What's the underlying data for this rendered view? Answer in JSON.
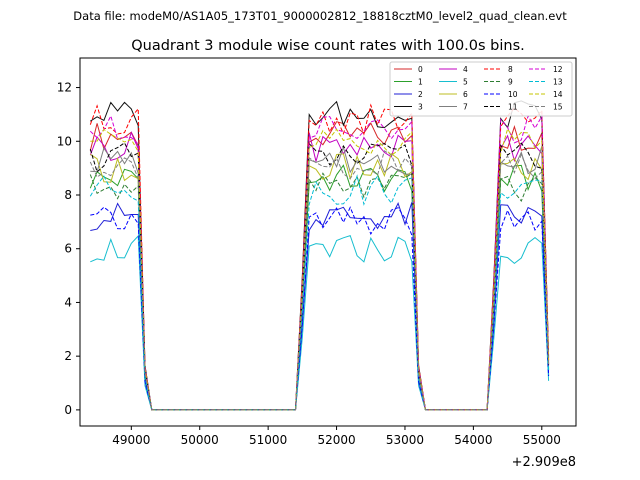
{
  "chart_data": {
    "type": "line",
    "suptitle": "Data file: modeM0/AS1A05_173T01_9000002812_18818cztM0_level2_quad_clean.evt",
    "title": "Quadrant 3 module wise count rates with 100.0s bins.",
    "xlabel": "",
    "ylabel": "",
    "x_offset_label": "+2.909e8",
    "xlim": [
      48250,
      55500
    ],
    "ylim": [
      -0.6,
      13.1
    ],
    "xticks": [
      49000,
      50000,
      51000,
      52000,
      53000,
      54000,
      55000
    ],
    "yticks": [
      0,
      2,
      4,
      6,
      8,
      10,
      12
    ],
    "legend_position": "top-right",
    "segments": [
      {
        "start": 48400,
        "n": 9
      },
      {
        "start": 49300,
        "n": 22
      },
      {
        "start": 51500,
        "n": 18
      },
      {
        "start": 53300,
        "n": 10
      },
      {
        "start": 54300,
        "n": 9
      }
    ],
    "series": [
      {
        "name": "0",
        "color": "#d62728",
        "dash": false,
        "level": 10.2
      },
      {
        "name": "1",
        "color": "#2ca02c",
        "dash": false,
        "level": 8.6
      },
      {
        "name": "2",
        "color": "#1f1fd6",
        "dash": false,
        "level": 7.2
      },
      {
        "name": "3",
        "color": "#111111",
        "dash": false,
        "level": 11.0
      },
      {
        "name": "4",
        "color": "#c000c0",
        "dash": false,
        "level": 9.8
      },
      {
        "name": "5",
        "color": "#17becf",
        "dash": false,
        "level": 6.0
      },
      {
        "name": "6",
        "color": "#bcbd22",
        "dash": false,
        "level": 9.0
      },
      {
        "name": "7",
        "color": "#7f7f7f",
        "dash": false,
        "level": 9.3
      },
      {
        "name": "8",
        "color": "#ff0000",
        "dash": true,
        "level": 10.8
      },
      {
        "name": "9",
        "color": "#2e7d32",
        "dash": true,
        "level": 8.3
      },
      {
        "name": "10",
        "color": "#0000ff",
        "dash": true,
        "level": 7.0
      },
      {
        "name": "11",
        "color": "#000000",
        "dash": true,
        "level": 9.4
      },
      {
        "name": "12",
        "color": "#d500d5",
        "dash": true,
        "level": 10.4
      },
      {
        "name": "13",
        "color": "#00bcd4",
        "dash": true,
        "level": 8.2
      },
      {
        "name": "14",
        "color": "#c6c600",
        "dash": true,
        "level": 10.0
      },
      {
        "name": "15",
        "color": "#808080",
        "dash": true,
        "level": 9.1
      }
    ]
  }
}
